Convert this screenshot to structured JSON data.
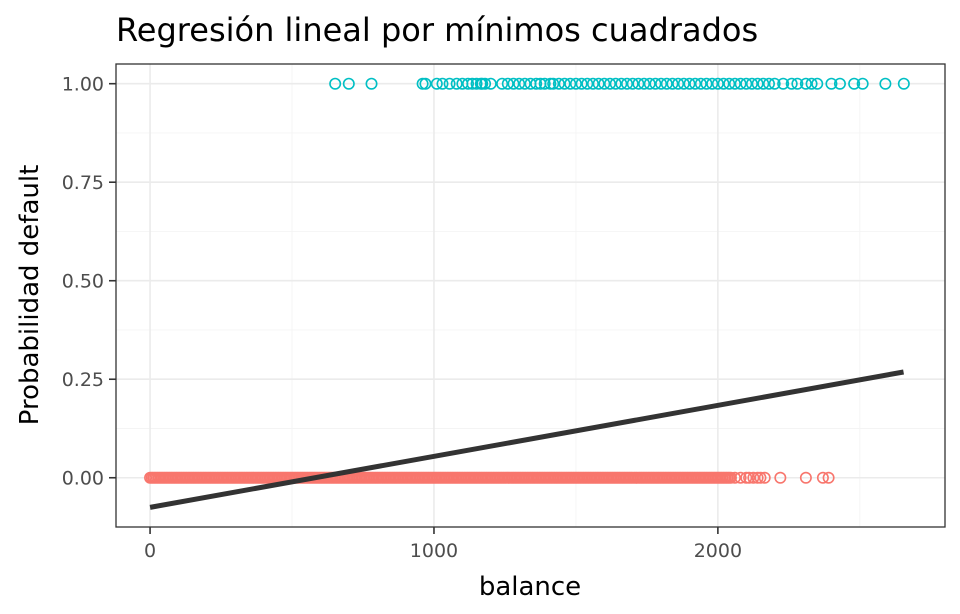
{
  "chart_data": {
    "type": "scatter",
    "title": "Regresión lineal por mínimos cuadrados",
    "xlabel": "balance",
    "ylabel": "Probabilidad default",
    "xlim": [
      -120,
      2800
    ],
    "ylim": [
      -0.125,
      1.05
    ],
    "x_ticks": [
      0,
      1000,
      2000
    ],
    "x_tick_labels": [
      "0",
      "1000",
      "2000"
    ],
    "y_ticks": [
      0.0,
      0.25,
      0.5,
      0.75,
      1.0
    ],
    "y_tick_labels": [
      "0.00",
      "0.25",
      "0.50",
      "0.75",
      "1.00"
    ],
    "grid": true,
    "theme": "bw",
    "colors": {
      "default_no": "#F8766D",
      "default_yes": "#00BFC4",
      "fit_line": "#333333"
    },
    "series": [
      {
        "y": 1,
        "color": "#00BFC4",
        "x": [
          652,
          700,
          780,
          960,
          970,
          1010,
          1030,
          1055,
          1080,
          1100,
          1120,
          1135,
          1150,
          1165,
          1170,
          1180,
          1200,
          1240,
          1260,
          1280,
          1300,
          1320,
          1340,
          1360,
          1375,
          1390,
          1410,
          1420,
          1440,
          1460,
          1480,
          1500,
          1520,
          1540,
          1560,
          1580,
          1600,
          1620,
          1640,
          1660,
          1680,
          1700,
          1720,
          1740,
          1760,
          1780,
          1800,
          1820,
          1840,
          1860,
          1880,
          1900,
          1920,
          1940,
          1960,
          1980,
          2000,
          2020,
          2040,
          2060,
          2080,
          2100,
          2120,
          2140,
          2160,
          2180,
          2200,
          2230,
          2260,
          2280,
          2310,
          2330,
          2350,
          2400,
          2430,
          2480,
          2510,
          2590,
          2655
        ]
      },
      {
        "y": 0,
        "color": "#F8766D",
        "x_dense_range": [
          0,
          2050
        ],
        "x_sparse": [
          2060,
          2080,
          2100,
          2110,
          2125,
          2140,
          2150,
          2165,
          2220,
          2310,
          2370,
          2390
        ]
      }
    ],
    "fit_line": {
      "x": [
        0,
        2654
      ],
      "y": [
        -0.0752,
        0.2684
      ]
    }
  }
}
